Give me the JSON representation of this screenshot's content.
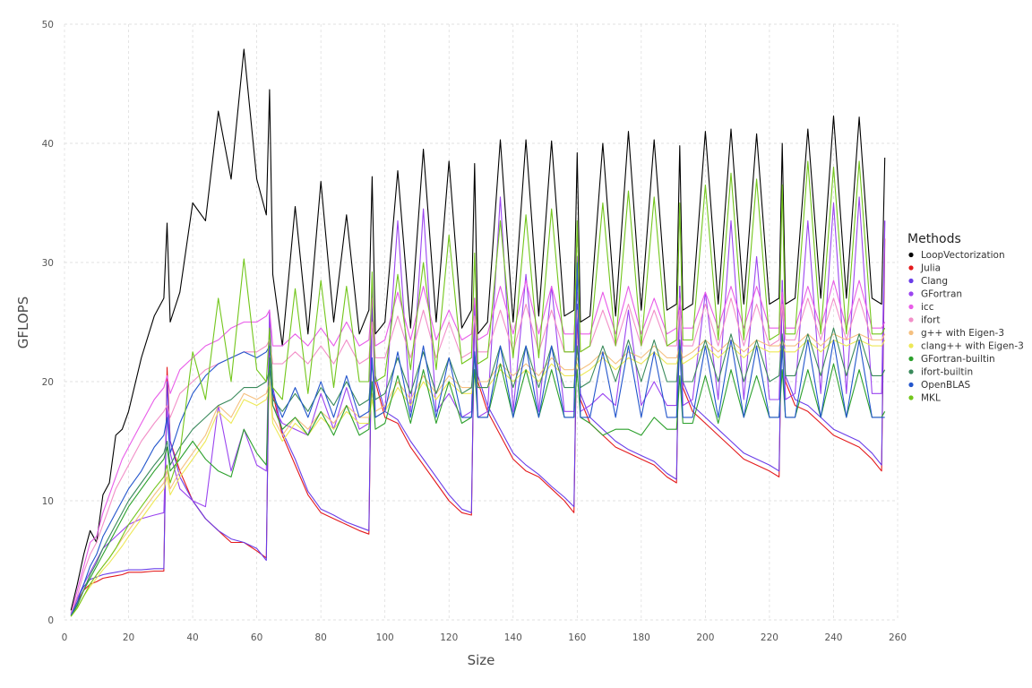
{
  "chart_data": {
    "type": "line",
    "title": "",
    "xlabel": "Size",
    "ylabel": "GFLOPS",
    "xlim": [
      0,
      260
    ],
    "ylim": [
      0,
      50
    ],
    "xticks": [
      0,
      20,
      40,
      60,
      80,
      100,
      120,
      140,
      160,
      180,
      200,
      220,
      240,
      260
    ],
    "yticks": [
      0,
      10,
      20,
      30,
      40,
      50
    ],
    "grid": true,
    "legend": {
      "title": "Methods",
      "placement": "right"
    },
    "x": [
      2,
      4,
      6,
      8,
      10,
      12,
      14,
      16,
      18,
      20,
      24,
      28,
      31,
      32,
      33,
      36,
      40,
      44,
      48,
      52,
      56,
      60,
      63,
      64,
      65,
      68,
      72,
      76,
      80,
      84,
      88,
      92,
      95,
      96,
      97,
      100,
      104,
      108,
      112,
      116,
      120,
      124,
      127,
      128,
      129,
      132,
      136,
      140,
      144,
      148,
      152,
      156,
      159,
      160,
      161,
      164,
      168,
      172,
      176,
      180,
      184,
      188,
      191,
      192,
      193,
      196,
      200,
      204,
      208,
      212,
      216,
      220,
      223,
      224,
      225,
      228,
      232,
      236,
      240,
      244,
      248,
      252,
      255,
      256
    ],
    "series": [
      {
        "name": "LoopVectorization",
        "color": "#000000",
        "values": [
          0.8,
          3.0,
          5.5,
          7.5,
          6.5,
          10.5,
          11.5,
          15.5,
          16.0,
          17.5,
          22.0,
          25.5,
          27.0,
          33.3,
          25.0,
          27.5,
          35.0,
          33.5,
          42.7,
          37.0,
          47.9,
          37.0,
          34.0,
          44.5,
          29.0,
          23.0,
          34.7,
          24.0,
          36.8,
          25.0,
          34.0,
          24.0,
          26.0,
          37.2,
          24.0,
          25.0,
          37.7,
          24.5,
          39.5,
          25.0,
          38.5,
          24.5,
          26.0,
          38.3,
          24.0,
          25.0,
          40.3,
          25.0,
          40.3,
          25.5,
          40.2,
          25.5,
          26.0,
          39.2,
          25.0,
          25.5,
          40.0,
          25.5,
          41.0,
          26.0,
          40.3,
          26.0,
          26.5,
          39.8,
          26.0,
          26.5,
          41.0,
          26.5,
          41.2,
          26.5,
          40.8,
          26.5,
          27.0,
          40.0,
          26.5,
          27.0,
          41.2,
          27.0,
          42.3,
          27.0,
          42.2,
          27.0,
          26.5,
          38.8
        ]
      },
      {
        "name": "Julia",
        "color": "#e41a1c",
        "values": [
          0.5,
          1.5,
          2.5,
          3.0,
          3.2,
          3.5,
          3.6,
          3.7,
          3.8,
          4.0,
          4.0,
          4.1,
          4.1,
          21.2,
          15.0,
          12.5,
          10.0,
          8.5,
          7.5,
          6.5,
          6.5,
          5.8,
          5.2,
          25.0,
          19.0,
          15.5,
          13.0,
          10.5,
          9.0,
          8.5,
          8.0,
          7.5,
          7.2,
          26.5,
          20.0,
          17.0,
          16.5,
          14.5,
          13.0,
          11.5,
          10.0,
          9.0,
          8.8,
          26.0,
          20.0,
          17.5,
          15.5,
          13.5,
          12.5,
          12.0,
          11.0,
          10.0,
          9.0,
          26.0,
          18.5,
          16.5,
          15.5,
          14.5,
          14.0,
          13.5,
          13.0,
          12.0,
          11.5,
          28.0,
          19.5,
          17.5,
          16.5,
          15.5,
          14.5,
          13.5,
          13.0,
          12.5,
          12.0,
          28.0,
          20.0,
          18.0,
          17.5,
          16.5,
          15.5,
          15.0,
          14.5,
          13.5,
          12.5,
          32.0
        ]
      },
      {
        "name": "Clang",
        "color": "#6a3de8",
        "values": [
          0.6,
          1.8,
          2.8,
          3.4,
          3.6,
          3.8,
          3.9,
          4.0,
          4.1,
          4.2,
          4.2,
          4.3,
          4.3,
          20.0,
          15.0,
          12.0,
          10.0,
          8.5,
          7.5,
          6.8,
          6.5,
          6.0,
          5.0,
          26.0,
          19.5,
          15.8,
          13.5,
          10.8,
          9.3,
          8.8,
          8.2,
          7.8,
          7.5,
          27.0,
          20.5,
          17.5,
          16.8,
          15.0,
          13.5,
          12.0,
          10.5,
          9.3,
          9.0,
          26.5,
          20.5,
          18.0,
          16.0,
          14.0,
          13.0,
          12.2,
          11.2,
          10.3,
          9.5,
          26.5,
          19.0,
          17.0,
          16.0,
          15.0,
          14.3,
          13.8,
          13.3,
          12.3,
          11.8,
          28.0,
          20.0,
          18.0,
          17.0,
          16.0,
          15.0,
          14.0,
          13.5,
          13.0,
          12.5,
          28.5,
          20.5,
          18.5,
          18.0,
          17.0,
          16.0,
          15.5,
          15.0,
          14.0,
          13.0,
          33.5
        ]
      },
      {
        "name": "GFortran",
        "color": "#9b45f0",
        "values": [
          0.4,
          1.8,
          3.0,
          4.0,
          5.0,
          6.0,
          6.5,
          7.0,
          7.5,
          8.0,
          8.5,
          8.8,
          9.0,
          18.0,
          14.0,
          11.0,
          10.0,
          9.5,
          18.0,
          12.5,
          16.0,
          13.0,
          12.5,
          26.0,
          18.0,
          16.5,
          16.0,
          15.5,
          19.0,
          16.0,
          19.5,
          16.0,
          16.5,
          28.0,
          17.0,
          17.5,
          33.5,
          17.5,
          34.5,
          17.5,
          19.0,
          17.0,
          17.5,
          27.0,
          17.0,
          17.5,
          35.5,
          17.5,
          29.0,
          17.5,
          28.0,
          17.5,
          17.5,
          30.5,
          17.5,
          18.0,
          19.0,
          18.0,
          26.0,
          18.0,
          20.0,
          18.0,
          18.0,
          28.0,
          18.0,
          18.5,
          27.5,
          18.5,
          33.5,
          18.5,
          30.5,
          18.5,
          18.5,
          28.5,
          18.5,
          19.0,
          33.5,
          19.0,
          35.0,
          19.0,
          35.5,
          19.0,
          19.0,
          33.5
        ]
      },
      {
        "name": "icc",
        "color": "#e85ce8",
        "values": [
          0.5,
          2.5,
          4.5,
          6.5,
          7.0,
          9.0,
          10.5,
          12.0,
          13.5,
          14.5,
          16.5,
          18.5,
          19.5,
          20.5,
          19.0,
          21.0,
          22.0,
          23.0,
          23.5,
          24.5,
          25.0,
          25.0,
          25.5,
          26.0,
          23.0,
          23.0,
          24.0,
          23.0,
          24.5,
          23.0,
          25.0,
          23.0,
          23.5,
          27.0,
          23.0,
          23.5,
          27.5,
          23.5,
          28.0,
          23.5,
          26.0,
          23.5,
          24.0,
          27.0,
          23.5,
          24.0,
          28.0,
          24.0,
          28.5,
          24.0,
          28.0,
          24.0,
          24.0,
          27.5,
          24.0,
          24.0,
          27.5,
          24.0,
          28.0,
          24.0,
          27.0,
          24.0,
          24.5,
          27.0,
          24.5,
          24.5,
          27.5,
          24.5,
          28.0,
          24.5,
          28.0,
          24.5,
          24.5,
          27.5,
          24.5,
          24.5,
          28.0,
          24.5,
          28.5,
          24.5,
          28.5,
          24.5,
          24.5,
          25.0
        ]
      },
      {
        "name": "ifort",
        "color": "#f28fc8",
        "values": [
          0.5,
          2.0,
          4.0,
          5.5,
          6.5,
          8.0,
          9.5,
          11.0,
          12.0,
          13.0,
          15.0,
          16.5,
          17.5,
          18.0,
          17.0,
          19.0,
          20.0,
          21.0,
          21.5,
          22.0,
          22.5,
          22.5,
          23.0,
          23.5,
          21.5,
          21.5,
          22.5,
          21.5,
          23.0,
          21.5,
          23.5,
          21.5,
          22.0,
          25.0,
          22.0,
          22.0,
          25.5,
          22.0,
          26.0,
          22.0,
          25.0,
          22.0,
          22.5,
          25.5,
          22.5,
          22.5,
          26.0,
          22.5,
          26.5,
          22.5,
          26.0,
          22.5,
          22.5,
          26.0,
          22.5,
          23.0,
          26.0,
          23.0,
          26.5,
          23.0,
          26.0,
          23.0,
          23.0,
          26.0,
          23.0,
          23.0,
          26.5,
          23.0,
          27.0,
          23.0,
          26.5,
          23.0,
          23.5,
          26.5,
          23.5,
          23.5,
          27.0,
          23.5,
          27.0,
          23.5,
          27.0,
          23.5,
          23.5,
          24.0
        ]
      },
      {
        "name": "g++ with Eigen-3",
        "color": "#f5c080",
        "values": [
          0.3,
          1.0,
          2.0,
          3.0,
          3.8,
          4.5,
          5.2,
          6.0,
          6.8,
          7.5,
          9.0,
          10.5,
          11.5,
          12.5,
          11.0,
          12.5,
          14.0,
          15.5,
          18.0,
          17.0,
          19.0,
          18.5,
          19.0,
          20.0,
          17.0,
          15.5,
          17.0,
          16.0,
          17.5,
          16.5,
          18.0,
          17.0,
          17.0,
          19.0,
          17.5,
          18.0,
          20.0,
          18.5,
          20.5,
          19.0,
          20.5,
          19.5,
          19.5,
          21.0,
          20.0,
          20.0,
          21.5,
          20.5,
          21.5,
          20.5,
          22.0,
          21.0,
          21.0,
          22.0,
          21.0,
          21.5,
          22.5,
          21.5,
          22.5,
          22.0,
          23.0,
          22.0,
          22.0,
          23.0,
          22.0,
          22.5,
          23.5,
          22.5,
          23.5,
          22.5,
          23.5,
          23.0,
          23.0,
          23.5,
          23.0,
          23.0,
          24.0,
          23.0,
          24.0,
          23.5,
          24.0,
          23.5,
          23.5,
          24.0
        ]
      },
      {
        "name": "clang++ with Eigen-3",
        "color": "#ede857",
        "values": [
          0.3,
          1.0,
          2.0,
          2.8,
          3.5,
          4.2,
          4.8,
          5.5,
          6.2,
          7.0,
          8.5,
          10.0,
          11.0,
          12.0,
          10.5,
          12.0,
          13.5,
          15.0,
          17.5,
          16.5,
          18.5,
          18.0,
          18.5,
          19.5,
          16.5,
          15.0,
          16.5,
          15.5,
          17.0,
          16.0,
          17.5,
          16.5,
          16.5,
          18.5,
          17.0,
          17.5,
          19.5,
          18.0,
          20.0,
          18.5,
          20.0,
          19.0,
          19.0,
          20.5,
          19.5,
          19.5,
          21.0,
          20.0,
          21.0,
          20.0,
          21.5,
          20.5,
          20.5,
          21.5,
          20.5,
          21.0,
          22.0,
          21.0,
          22.0,
          21.5,
          22.5,
          21.5,
          21.5,
          22.5,
          21.5,
          22.0,
          23.0,
          22.0,
          23.0,
          22.0,
          23.0,
          22.5,
          22.5,
          23.0,
          22.5,
          22.5,
          23.5,
          22.5,
          23.5,
          23.0,
          23.5,
          23.0,
          23.0,
          23.5
        ]
      },
      {
        "name": "GFortran-builtin",
        "color": "#2ca02c",
        "values": [
          0.3,
          1.2,
          2.5,
          3.5,
          4.5,
          5.5,
          6.5,
          7.5,
          8.5,
          9.5,
          11.0,
          12.5,
          13.5,
          14.5,
          12.5,
          13.5,
          15.0,
          13.5,
          12.5,
          12.0,
          16.0,
          14.0,
          13.0,
          22.0,
          18.0,
          16.0,
          17.0,
          15.5,
          17.5,
          15.5,
          18.0,
          15.5,
          16.0,
          20.0,
          16.0,
          16.5,
          20.5,
          16.5,
          21.0,
          16.5,
          20.0,
          16.5,
          17.0,
          21.0,
          17.0,
          17.0,
          21.5,
          17.0,
          21.0,
          17.0,
          21.0,
          17.0,
          17.0,
          21.0,
          17.0,
          16.5,
          15.5,
          16.0,
          16.0,
          15.5,
          17.0,
          16.0,
          16.0,
          20.5,
          16.5,
          16.5,
          20.5,
          16.5,
          21.0,
          17.0,
          20.5,
          17.0,
          17.0,
          21.0,
          17.0,
          17.0,
          21.0,
          17.0,
          21.5,
          17.0,
          21.0,
          17.0,
          17.0,
          17.5
        ]
      },
      {
        "name": "ifort-builtin",
        "color": "#3a8a5c",
        "values": [
          0.3,
          1.3,
          2.5,
          3.8,
          4.8,
          6.0,
          7.0,
          8.0,
          9.0,
          10.0,
          11.5,
          13.0,
          14.0,
          15.0,
          13.0,
          14.5,
          16.0,
          17.0,
          18.0,
          18.5,
          19.5,
          19.5,
          20.0,
          21.0,
          18.5,
          17.5,
          19.0,
          17.5,
          19.5,
          18.0,
          20.0,
          18.0,
          18.5,
          21.5,
          18.5,
          19.0,
          22.0,
          19.0,
          22.5,
          19.0,
          22.0,
          19.0,
          19.5,
          22.5,
          19.5,
          19.5,
          23.0,
          19.5,
          23.0,
          19.5,
          23.0,
          19.5,
          19.5,
          23.0,
          19.5,
          20.0,
          23.0,
          20.0,
          23.5,
          20.0,
          23.5,
          20.0,
          20.0,
          23.5,
          20.0,
          20.0,
          23.5,
          20.0,
          24.0,
          20.0,
          23.5,
          20.0,
          20.5,
          24.0,
          20.5,
          20.5,
          24.0,
          20.5,
          24.5,
          20.5,
          24.0,
          20.5,
          20.5,
          21.0
        ]
      },
      {
        "name": "OpenBLAS",
        "color": "#2255cc",
        "values": [
          0.4,
          1.5,
          3.0,
          4.5,
          5.5,
          7.0,
          8.0,
          9.0,
          10.0,
          11.0,
          12.5,
          14.5,
          15.5,
          17.0,
          14.0,
          16.5,
          19.0,
          20.5,
          21.5,
          22.0,
          22.5,
          22.0,
          22.5,
          23.0,
          19.0,
          17.0,
          19.5,
          17.0,
          20.0,
          17.0,
          20.5,
          17.0,
          17.5,
          22.0,
          17.0,
          17.5,
          22.5,
          17.0,
          23.0,
          17.0,
          22.0,
          17.0,
          17.0,
          22.5,
          17.0,
          17.0,
          23.0,
          17.0,
          23.0,
          17.0,
          23.0,
          17.0,
          17.0,
          30.0,
          17.0,
          17.0,
          22.5,
          17.0,
          23.0,
          17.0,
          22.5,
          17.0,
          17.0,
          23.0,
          17.0,
          17.0,
          23.0,
          17.0,
          23.5,
          17.0,
          23.0,
          17.0,
          17.0,
          23.0,
          17.0,
          17.0,
          23.5,
          17.0,
          23.5,
          17.0,
          23.5,
          17.0,
          17.0,
          17.0
        ]
      },
      {
        "name": "MKL",
        "color": "#73c61c",
        "values": [
          0.3,
          1.0,
          2.0,
          3.0,
          3.8,
          4.5,
          5.2,
          6.0,
          7.0,
          8.0,
          9.5,
          11.0,
          12.0,
          13.0,
          11.5,
          14.0,
          22.5,
          18.5,
          27.0,
          20.0,
          30.3,
          21.0,
          20.0,
          24.5,
          19.5,
          18.5,
          27.8,
          19.0,
          28.5,
          19.5,
          28.0,
          20.0,
          20.0,
          29.2,
          20.0,
          20.5,
          29.0,
          21.0,
          30.0,
          21.0,
          32.3,
          21.5,
          22.0,
          30.8,
          21.5,
          22.0,
          33.5,
          22.0,
          34.0,
          22.0,
          34.5,
          22.5,
          22.5,
          33.5,
          22.5,
          23.0,
          35.0,
          23.0,
          36.0,
          23.0,
          35.5,
          23.0,
          23.5,
          35.0,
          23.5,
          23.5,
          36.5,
          23.5,
          37.5,
          23.5,
          37.0,
          23.5,
          24.0,
          36.5,
          24.0,
          24.0,
          38.5,
          24.0,
          38.0,
          24.0,
          38.5,
          24.0,
          24.0,
          24.5
        ]
      }
    ]
  }
}
